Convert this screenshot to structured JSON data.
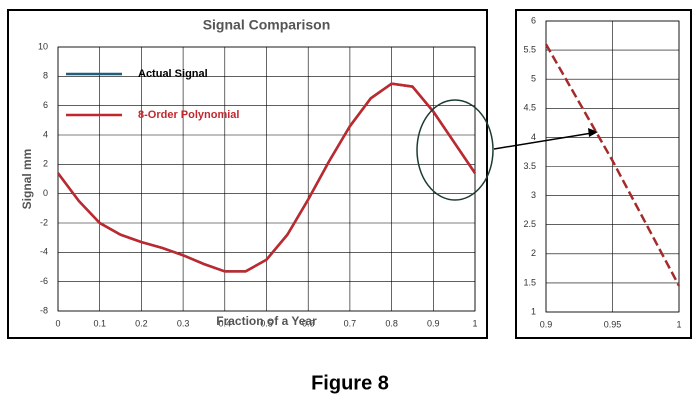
{
  "caption": "Figure 8",
  "chart_data": [
    {
      "type": "line",
      "title": "Signal Comparison",
      "x_label": "Fraction of a Year",
      "y_label": "Signal mm",
      "x": [
        0,
        0.05,
        0.1,
        0.15,
        0.2,
        0.25,
        0.3,
        0.35,
        0.4,
        0.45,
        0.5,
        0.55,
        0.6,
        0.65,
        0.7,
        0.75,
        0.8,
        0.85,
        0.9,
        0.95,
        1
      ],
      "series": [
        {
          "name": "Actual Signal",
          "color": "#1f5f7a",
          "values": [
            1.4,
            -0.5,
            -2.0,
            -2.8,
            -3.3,
            -3.7,
            -4.2,
            -4.8,
            -5.3,
            -5.3,
            -4.5,
            -2.8,
            -0.4,
            2.2,
            4.6,
            6.5,
            7.5,
            7.3,
            5.6,
            3.5,
            1.4
          ]
        },
        {
          "name": "8-Order Polynomial",
          "color": "#c0282d",
          "values": [
            1.4,
            -0.5,
            -2.0,
            -2.8,
            -3.3,
            -3.7,
            -4.2,
            -4.8,
            -5.3,
            -5.3,
            -4.5,
            -2.8,
            -0.4,
            2.2,
            4.6,
            6.5,
            7.5,
            7.3,
            5.6,
            3.5,
            1.4
          ]
        }
      ],
      "xlim": [
        0,
        1
      ],
      "xticks": [
        0,
        0.1,
        0.2,
        0.3,
        0.4,
        0.5,
        0.6,
        0.7,
        0.8,
        0.9,
        1
      ],
      "ylim": [
        -8,
        10
      ],
      "yticks": [
        -8,
        -6,
        -4,
        -2,
        0,
        2,
        4,
        6,
        8,
        10
      ],
      "grid": true,
      "legend": "upper left"
    },
    {
      "type": "line",
      "x": [
        0.9,
        0.95,
        1
      ],
      "series": [
        {
          "color": "#a52a2a",
          "style": "dashed",
          "values": [
            5.6,
            3.6,
            1.45
          ]
        }
      ],
      "xlim": [
        0.9,
        1
      ],
      "xticks": [
        0.9,
        0.95,
        1
      ],
      "ylim": [
        1,
        6
      ],
      "yticks": [
        1,
        1.5,
        2,
        2.5,
        3,
        3.5,
        4,
        4.5,
        5,
        5.5,
        6
      ],
      "grid": true
    }
  ]
}
